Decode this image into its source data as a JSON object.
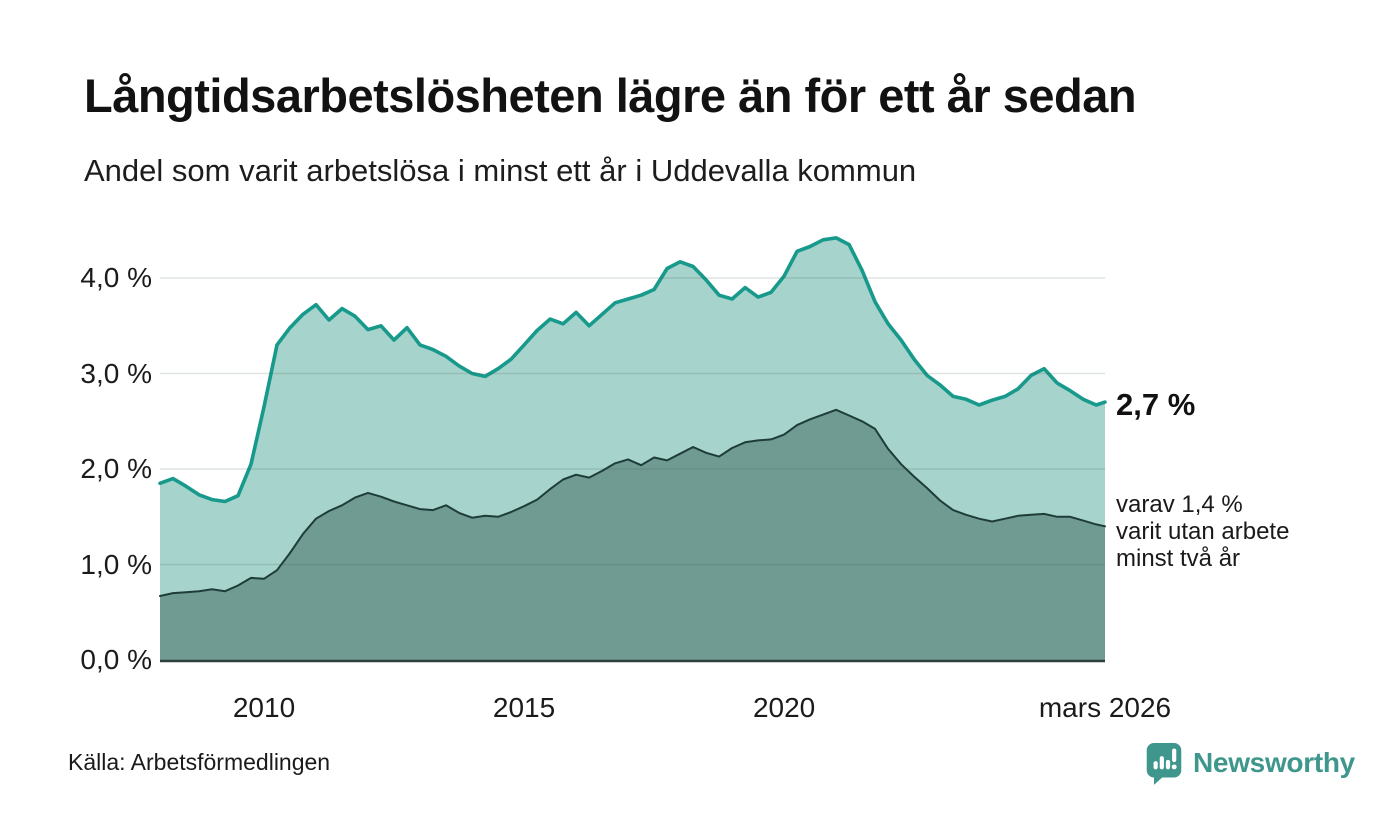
{
  "header": {
    "title": "Långtidsarbetslösheten lägre än för ett år sedan",
    "subtitle": "Andel som varit arbetslösa i minst ett år i Uddevalla kommun"
  },
  "chart_data": {
    "type": "area",
    "title": "Långtidsarbetslösheten lägre än för ett år sedan",
    "subtitle": "Andel som varit arbetslösa i minst ett år i Uddevalla kommun",
    "x_unit": "decimal_year",
    "xlim": [
      2008.0,
      2026.17
    ],
    "ylim": [
      0,
      4.5
    ],
    "grid": true,
    "legend_position": "end-labels-right",
    "x": [
      2008,
      2008.25,
      2008.5,
      2008.75,
      2009,
      2009.25,
      2009.5,
      2009.75,
      2010,
      2010.25,
      2010.5,
      2010.75,
      2011,
      2011.25,
      2011.5,
      2011.75,
      2012,
      2012.25,
      2012.5,
      2012.75,
      2013,
      2013.25,
      2013.5,
      2013.75,
      2014,
      2014.25,
      2014.5,
      2014.75,
      2015,
      2015.25,
      2015.5,
      2015.75,
      2016,
      2016.25,
      2016.5,
      2016.75,
      2017,
      2017.25,
      2017.5,
      2017.75,
      2018,
      2018.25,
      2018.5,
      2018.75,
      2019,
      2019.25,
      2019.5,
      2019.75,
      2020,
      2020.25,
      2020.5,
      2020.75,
      2021,
      2021.25,
      2021.5,
      2021.75,
      2022,
      2022.25,
      2022.5,
      2022.75,
      2023,
      2023.25,
      2023.5,
      2023.75,
      2024,
      2024.25,
      2024.5,
      2024.75,
      2025,
      2025.25,
      2025.5,
      2025.75,
      2026,
      2026.17
    ],
    "series": [
      {
        "name": "Andel som varit arbetslösa i minst ett år",
        "latest_value_pct": 2.7,
        "end_label": "2,7 %",
        "values": [
          1.85,
          1.9,
          1.82,
          1.73,
          1.68,
          1.66,
          1.72,
          2.05,
          2.65,
          3.3,
          3.48,
          3.62,
          3.72,
          3.56,
          3.68,
          3.6,
          3.46,
          3.5,
          3.35,
          3.48,
          3.3,
          3.25,
          3.18,
          3.08,
          3.0,
          2.97,
          3.05,
          3.15,
          3.3,
          3.45,
          3.57,
          3.52,
          3.64,
          3.5,
          3.62,
          3.74,
          3.78,
          3.82,
          3.88,
          4.1,
          4.17,
          4.12,
          3.98,
          3.82,
          3.78,
          3.9,
          3.8,
          3.85,
          4.02,
          4.28,
          4.33,
          4.4,
          4.42,
          4.35,
          4.08,
          3.75,
          3.52,
          3.35,
          3.15,
          2.98,
          2.88,
          2.76,
          2.73,
          2.67,
          2.72,
          2.76,
          2.84,
          2.98,
          3.05,
          2.9,
          2.82,
          2.73,
          2.67,
          2.7
        ]
      },
      {
        "name": "varav varit utan arbete minst två år",
        "latest_value_pct": 1.4,
        "end_label": "varav 1,4 % varit utan arbete minst två år",
        "values": [
          0.67,
          0.7,
          0.71,
          0.72,
          0.74,
          0.72,
          0.78,
          0.86,
          0.85,
          0.94,
          1.12,
          1.32,
          1.48,
          1.56,
          1.62,
          1.7,
          1.75,
          1.71,
          1.66,
          1.62,
          1.58,
          1.57,
          1.62,
          1.54,
          1.49,
          1.51,
          1.5,
          1.55,
          1.61,
          1.68,
          1.79,
          1.89,
          1.94,
          1.91,
          1.98,
          2.06,
          2.1,
          2.04,
          2.12,
          2.09,
          2.16,
          2.23,
          2.17,
          2.13,
          2.22,
          2.28,
          2.3,
          2.31,
          2.36,
          2.46,
          2.52,
          2.57,
          2.62,
          2.56,
          2.5,
          2.42,
          2.21,
          2.05,
          1.92,
          1.8,
          1.67,
          1.57,
          1.52,
          1.48,
          1.45,
          1.48,
          1.51,
          1.52,
          1.53,
          1.5,
          1.5,
          1.46,
          1.42,
          1.4
        ]
      }
    ],
    "yticks": [
      {
        "value": 0,
        "label": "0,0 %"
      },
      {
        "value": 1,
        "label": "1,0 %"
      },
      {
        "value": 2,
        "label": "2,0 %"
      },
      {
        "value": 3,
        "label": "3,0 %"
      },
      {
        "value": 4,
        "label": "4,0 %"
      }
    ],
    "xticks": [
      {
        "value": 2010,
        "label": "2010"
      },
      {
        "value": 2015,
        "label": "2015"
      },
      {
        "value": 2020,
        "label": "2020"
      },
      {
        "value": 2026.17,
        "label": "mars 2026"
      }
    ]
  },
  "annotations": {
    "total_label": "2,7 %",
    "secondary_lines": [
      "varav 1,4 %",
      "varit utan arbete",
      "minst två år"
    ]
  },
  "footer": {
    "source": "Källa: Arbetsförmedlingen",
    "brand": "Newsworthy"
  },
  "colors": {
    "series1_line": "#17998b",
    "series1_fill": "#a6d3cc",
    "series2_line": "#1e3d39",
    "series2_fill": "#6f9b93",
    "grid": "rgba(62,82,79,0.17)",
    "axis": "#2e3e3b",
    "brand": "#3e968c",
    "text": "#161616"
  }
}
